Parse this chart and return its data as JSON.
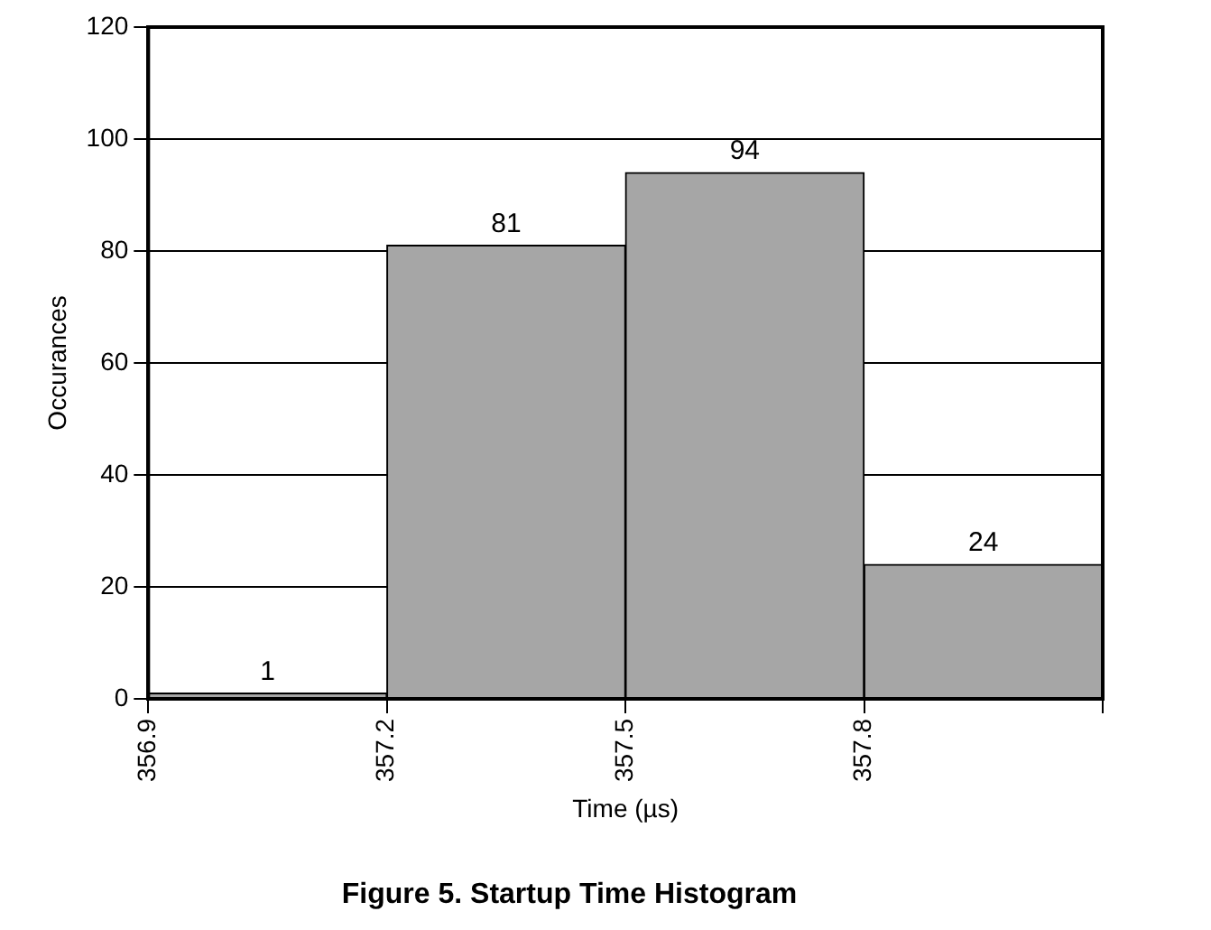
{
  "chart_data": {
    "type": "histogram",
    "title": "Figure 5. Startup Time Histogram",
    "xlabel": "Time (µs)",
    "ylabel": "Occurances",
    "bins": [
      356.9,
      357.2,
      357.5,
      357.8,
      358.1
    ],
    "values": [
      1,
      81,
      94,
      24
    ],
    "color": "#a6a6a6",
    "xlim": [
      356.9,
      358.1
    ],
    "xticks": [
      356.9,
      357.2,
      357.5,
      357.8,
      {
        "value": 358.1,
        "label": null
      }
    ],
    "ylim": [
      0,
      120
    ],
    "yticks": [
      0,
      20,
      40,
      60,
      80,
      100,
      120
    ],
    "grid": "y",
    "data_labels": true
  }
}
